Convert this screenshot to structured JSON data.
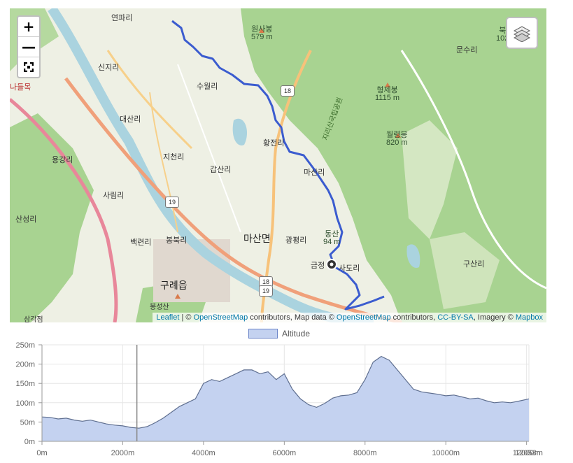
{
  "map": {
    "zoom_in": "+",
    "zoom_out": "—",
    "fullscreen_icon": "fullscreen-icon",
    "layers_icon": "layers-icon",
    "attribution": {
      "leaflet": "Leaflet",
      "sep": " | © ",
      "osm1": "OpenStreetMap",
      "mid1": " contributors, Map data © ",
      "osm2": "OpenStreetMap",
      "mid2": " contributors, ",
      "license": "CC-BY-SA",
      "mid3": ", Imagery © ",
      "mapbox": "Mapbox"
    },
    "places": {
      "yeonpari": "연파리",
      "sinjiri": "신지리",
      "daesanri": "대산리",
      "sinwolri": "수월리",
      "yonggangri": "용강리",
      "jicheonri": "지천리",
      "gapsanri": "갑산리",
      "hwangjeonri": "황전리",
      "masanri": "마산리",
      "sarimri": "사림리",
      "sanseongri": "산성리",
      "baekryeonri": "백련리",
      "bongbukri": "봉북리",
      "masanmyeon": "마산면",
      "gwangpyeongri": "광평리",
      "gurye": "구례읍",
      "geumjeong": "금정",
      "sadori": "사도리",
      "gusanri": "구산리",
      "munsuri": "문수리",
      "nadeul": "나들목",
      "bongseongsan": "봉성산",
      "samgakjeom": "삼각점",
      "jirisan": "지리산국립공원"
    },
    "peaks": {
      "wonsabong_name": "원사봉",
      "wonsabong_alt": "579 m",
      "hyeongjebong_name": "형제봉",
      "hyeongjebong_alt": "1115 m",
      "woryeongbong_name": "월령봉",
      "woryeongbong_alt": "820 m",
      "bukgo_name": "북",
      "bukgo_alt": "102",
      "dongsan_name": "동산",
      "dongsan_alt": "94 m"
    },
    "shields": {
      "r18a": "18",
      "r19": "19",
      "r18b": "18",
      "r19b": "19"
    },
    "colors": {
      "track": "#3b5ccf",
      "forest": "#a8d391",
      "road_major": "#f0a07a",
      "road_minor": "#f7d08a",
      "water": "#aad3df"
    }
  },
  "chart_data": {
    "type": "area",
    "legend": "Altitude",
    "y_ticks": [
      "0m",
      "50m",
      "100m",
      "150m",
      "200m",
      "250m"
    ],
    "x_ticks": [
      "0m",
      "2000m",
      "4000m",
      "6000m",
      "8000m",
      "10000m",
      "12000m"
    ],
    "x_end_label": "12058m",
    "xlim": [
      0,
      12058
    ],
    "ylim": [
      0,
      250
    ],
    "cursor_x": 2350,
    "colors": {
      "fill": "#c4d2f0",
      "line": "#5f6f90",
      "cursor": "#888888"
    },
    "series": [
      {
        "x": [
          0,
          200,
          400,
          600,
          800,
          1000,
          1200,
          1400,
          1600,
          1800,
          2000,
          2200,
          2400,
          2600,
          2800,
          3000,
          3200,
          3400,
          3600,
          3800,
          4000,
          4200,
          4400,
          4600,
          4800,
          5000,
          5200,
          5400,
          5600,
          5800,
          6000,
          6200,
          6400,
          6600,
          6800,
          7000,
          7200,
          7400,
          7600,
          7800,
          8000,
          8200,
          8400,
          8600,
          8800,
          9000,
          9200,
          9400,
          9600,
          9800,
          10000,
          10200,
          10400,
          10600,
          10800,
          11000,
          11200,
          11400,
          11600,
          11800,
          12058
        ],
        "values": [
          63,
          62,
          58,
          60,
          55,
          52,
          55,
          50,
          45,
          42,
          40,
          36,
          34,
          38,
          48,
          60,
          75,
          90,
          100,
          110,
          150,
          160,
          155,
          165,
          175,
          185,
          185,
          175,
          180,
          160,
          175,
          135,
          110,
          95,
          88,
          98,
          112,
          118,
          120,
          126,
          160,
          205,
          220,
          210,
          185,
          160,
          135,
          128,
          125,
          122,
          118,
          120,
          115,
          110,
          112,
          105,
          100,
          102,
          100,
          104,
          110
        ]
      }
    ]
  }
}
